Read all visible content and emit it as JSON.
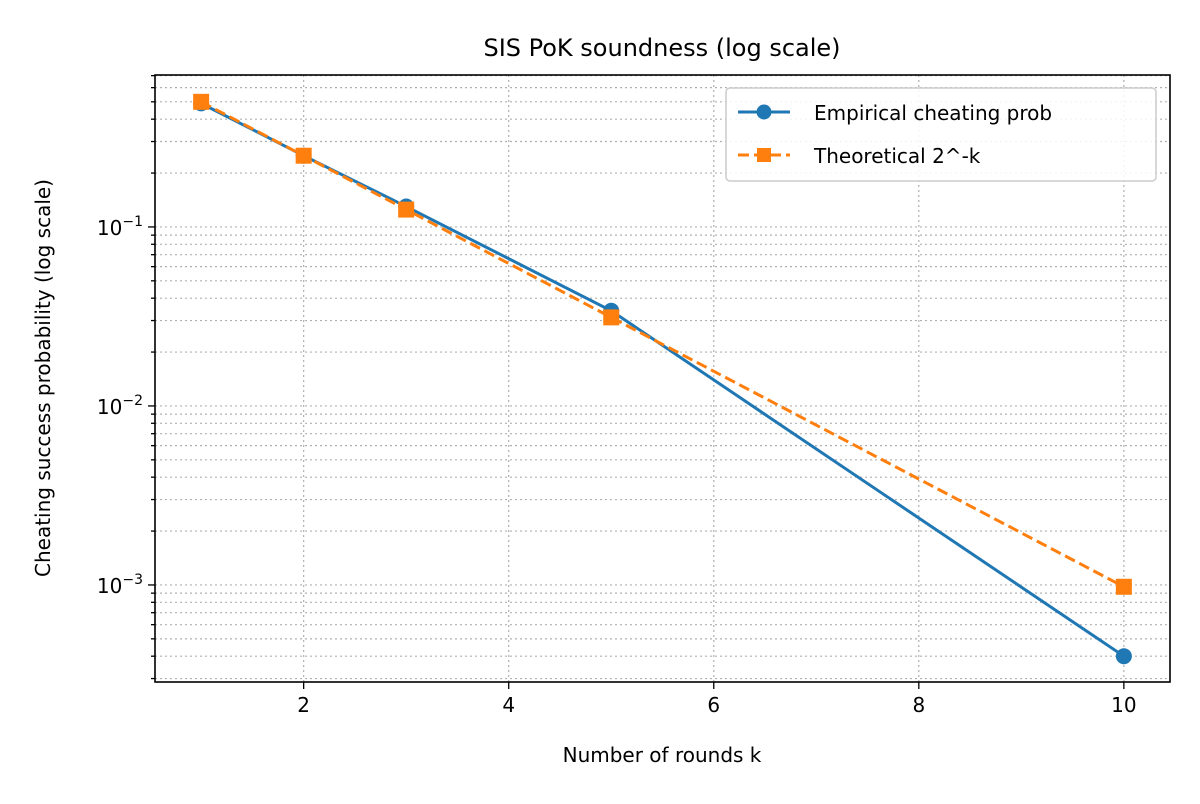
{
  "chart_data": {
    "type": "line",
    "title": "SIS PoK soundness (log scale)",
    "xlabel": "Number of rounds k",
    "ylabel": "Cheating success probability (log scale)",
    "xlim": [
      0.55,
      10.45
    ],
    "ylim": [
      0.000287,
      0.706
    ],
    "yscale": "log",
    "grid": true,
    "legend_position": "top-right",
    "xticks": [
      2,
      4,
      6,
      8,
      10
    ],
    "yticks": [
      {
        "value": 0.1,
        "base": "10",
        "exp": "−1"
      },
      {
        "value": 0.01,
        "base": "10",
        "exp": "−2"
      },
      {
        "value": 0.001,
        "base": "10",
        "exp": "−3"
      }
    ],
    "x": [
      1,
      2,
      3,
      5,
      10
    ],
    "series": [
      {
        "name": "Empirical cheating prob",
        "color": "#1f77b4",
        "marker": "circle",
        "linestyle": "solid",
        "values": [
          0.49,
          0.25,
          0.13,
          0.034,
          0.0004
        ]
      },
      {
        "name": "Theoretical 2^-k",
        "color": "#ff7f0e",
        "marker": "square",
        "linestyle": "dashed",
        "values": [
          0.5,
          0.25,
          0.125,
          0.03125,
          0.000977
        ]
      }
    ]
  }
}
